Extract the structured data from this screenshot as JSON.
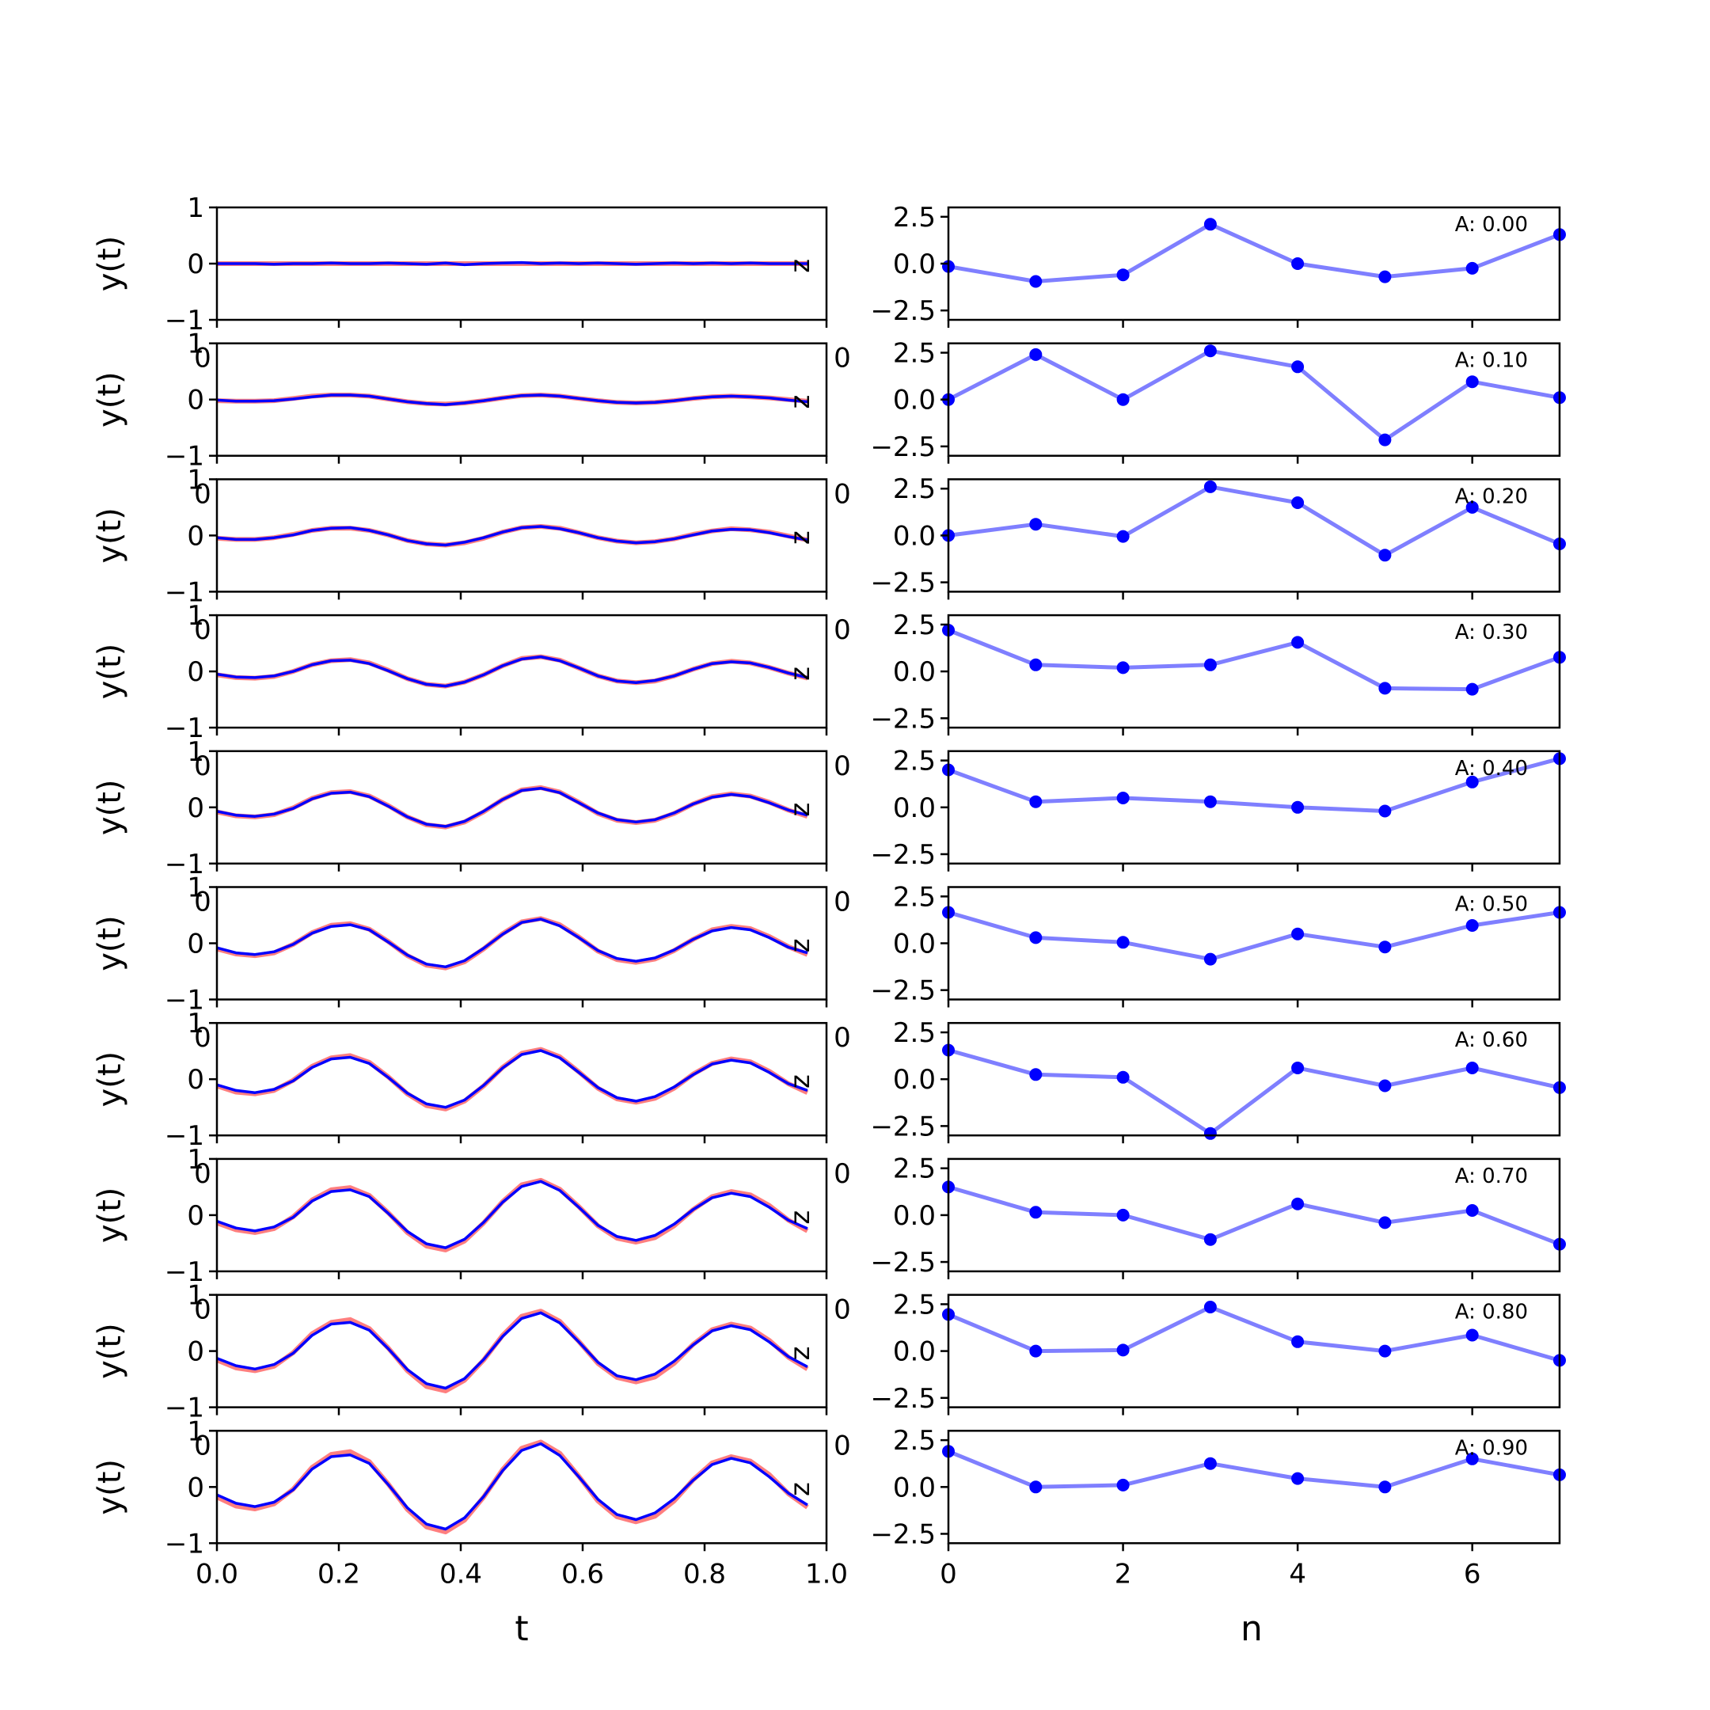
{
  "figure": {
    "layout": "10 rows x 2 columns",
    "left_xlabel": "t",
    "right_xlabel": "n"
  },
  "chart_data": [
    {
      "type": "line",
      "panel": "left-column",
      "series_colors": [
        "#ff0000",
        "#0000ff"
      ],
      "x": [
        0.0,
        0.03125,
        0.0625,
        0.09375,
        0.125,
        0.15625,
        0.1875,
        0.21875,
        0.25,
        0.28125,
        0.3125,
        0.34375,
        0.375,
        0.40625,
        0.4375,
        0.46875,
        0.5,
        0.53125,
        0.5625,
        0.59375,
        0.625,
        0.65625,
        0.6875,
        0.71875,
        0.75,
        0.78125,
        0.8125,
        0.84375,
        0.875,
        0.90625,
        0.9375,
        0.96875
      ],
      "xlim": [
        0.0,
        1.0
      ],
      "xticks": [
        "0.0",
        "0.2",
        "0.4",
        "0.6",
        "0.8",
        "1.0"
      ],
      "ylim": [
        -1,
        1
      ],
      "yticks": [
        "−1",
        "0",
        "1"
      ],
      "ylabel": "y(t)",
      "stray_labels": [
        "0",
        "0",
        "z"
      ],
      "rows": [
        {
          "red": [
            0.0,
            0.0,
            0.0,
            0.0,
            0.0,
            0.0,
            0.0,
            0.0,
            0.0,
            0.0,
            0.0,
            0.0,
            0.0,
            0.0,
            0.0,
            0.0,
            0.0,
            0.0,
            0.0,
            0.0,
            0.0,
            0.0,
            0.0,
            0.0,
            0.0,
            0.0,
            0.0,
            0.0,
            0.0,
            0.0,
            0.0,
            0.0
          ],
          "blue": [
            0.0,
            0.0,
            0.0,
            -0.01,
            0.0,
            0.0,
            0.01,
            0.0,
            0.0,
            0.01,
            0.0,
            -0.01,
            0.01,
            -0.02,
            0.0,
            0.01,
            0.02,
            0.0,
            0.01,
            0.0,
            0.01,
            0.0,
            -0.01,
            0.0,
            0.01,
            0.0,
            0.01,
            0.0,
            0.01,
            0.0,
            0.0,
            0.0
          ]
        },
        {
          "red": [
            -0.02,
            -0.03,
            -0.03,
            -0.02,
            0.02,
            0.06,
            0.08,
            0.08,
            0.06,
            0.01,
            -0.04,
            -0.07,
            -0.08,
            -0.06,
            -0.02,
            0.03,
            0.07,
            0.08,
            0.06,
            0.02,
            -0.02,
            -0.05,
            -0.06,
            -0.05,
            -0.02,
            0.02,
            0.05,
            0.06,
            0.05,
            0.03,
            0.0,
            -0.03
          ],
          "blue": [
            -0.01,
            -0.03,
            -0.03,
            -0.02,
            0.01,
            0.05,
            0.08,
            0.08,
            0.06,
            0.01,
            -0.04,
            -0.07,
            -0.09,
            -0.06,
            -0.02,
            0.03,
            0.07,
            0.08,
            0.06,
            0.02,
            -0.02,
            -0.05,
            -0.06,
            -0.05,
            -0.02,
            0.02,
            0.05,
            0.06,
            0.05,
            0.03,
            -0.01,
            -0.04
          ]
        },
        {
          "red": [
            -0.05,
            -0.07,
            -0.07,
            -0.04,
            0.02,
            0.09,
            0.13,
            0.13,
            0.09,
            0.01,
            -0.09,
            -0.15,
            -0.17,
            -0.13,
            -0.05,
            0.06,
            0.14,
            0.16,
            0.13,
            0.05,
            -0.04,
            -0.1,
            -0.13,
            -0.11,
            -0.06,
            0.02,
            0.08,
            0.12,
            0.1,
            0.06,
            -0.01,
            -0.08
          ],
          "blue": [
            -0.04,
            -0.07,
            -0.07,
            -0.04,
            0.01,
            0.09,
            0.13,
            0.14,
            0.09,
            0.01,
            -0.09,
            -0.15,
            -0.17,
            -0.12,
            -0.04,
            0.06,
            0.14,
            0.16,
            0.12,
            0.05,
            -0.04,
            -0.1,
            -0.13,
            -0.11,
            -0.06,
            0.01,
            0.08,
            0.11,
            0.1,
            0.05,
            -0.02,
            -0.08
          ]
        },
        {
          "red": [
            -0.06,
            -0.11,
            -0.12,
            -0.09,
            0.0,
            0.12,
            0.19,
            0.21,
            0.15,
            0.02,
            -0.13,
            -0.23,
            -0.26,
            -0.19,
            -0.06,
            0.1,
            0.23,
            0.26,
            0.2,
            0.06,
            -0.08,
            -0.17,
            -0.2,
            -0.17,
            -0.08,
            0.04,
            0.14,
            0.18,
            0.15,
            0.07,
            -0.03,
            -0.12
          ],
          "blue": [
            -0.05,
            -0.1,
            -0.11,
            -0.08,
            0.0,
            0.12,
            0.19,
            0.2,
            0.14,
            0.01,
            -0.13,
            -0.23,
            -0.26,
            -0.19,
            -0.06,
            0.1,
            0.22,
            0.26,
            0.19,
            0.06,
            -0.08,
            -0.17,
            -0.2,
            -0.16,
            -0.08,
            0.04,
            0.14,
            0.17,
            0.15,
            0.07,
            -0.03,
            -0.11
          ]
        },
        {
          "red": [
            -0.08,
            -0.15,
            -0.17,
            -0.13,
            -0.01,
            0.16,
            0.26,
            0.28,
            0.2,
            0.03,
            -0.17,
            -0.31,
            -0.35,
            -0.26,
            -0.08,
            0.14,
            0.31,
            0.35,
            0.27,
            0.09,
            -0.11,
            -0.23,
            -0.27,
            -0.23,
            -0.11,
            0.06,
            0.19,
            0.24,
            0.2,
            0.09,
            -0.05,
            -0.16
          ],
          "blue": [
            -0.07,
            -0.14,
            -0.16,
            -0.12,
            -0.02,
            0.15,
            0.25,
            0.27,
            0.19,
            0.02,
            -0.17,
            -0.3,
            -0.34,
            -0.25,
            -0.07,
            0.14,
            0.3,
            0.34,
            0.26,
            0.08,
            -0.1,
            -0.22,
            -0.26,
            -0.22,
            -0.1,
            0.06,
            0.18,
            0.23,
            0.19,
            0.08,
            -0.05,
            -0.14
          ]
        },
        {
          "red": [
            -0.1,
            -0.19,
            -0.22,
            -0.17,
            -0.02,
            0.19,
            0.32,
            0.35,
            0.25,
            0.03,
            -0.22,
            -0.39,
            -0.44,
            -0.33,
            -0.1,
            0.17,
            0.38,
            0.44,
            0.33,
            0.11,
            -0.14,
            -0.29,
            -0.34,
            -0.28,
            -0.13,
            0.07,
            0.24,
            0.3,
            0.26,
            0.12,
            -0.06,
            -0.2
          ],
          "blue": [
            -0.08,
            -0.17,
            -0.2,
            -0.15,
            -0.02,
            0.18,
            0.3,
            0.33,
            0.24,
            0.02,
            -0.21,
            -0.37,
            -0.42,
            -0.31,
            -0.09,
            0.16,
            0.37,
            0.43,
            0.31,
            0.1,
            -0.13,
            -0.27,
            -0.32,
            -0.26,
            -0.12,
            0.07,
            0.22,
            0.28,
            0.24,
            0.1,
            -0.07,
            -0.17
          ]
        },
        {
          "red": [
            -0.12,
            -0.23,
            -0.26,
            -0.2,
            -0.02,
            0.23,
            0.38,
            0.42,
            0.3,
            0.04,
            -0.26,
            -0.47,
            -0.53,
            -0.39,
            -0.12,
            0.21,
            0.46,
            0.53,
            0.4,
            0.13,
            -0.16,
            -0.35,
            -0.41,
            -0.34,
            -0.16,
            0.09,
            0.28,
            0.36,
            0.31,
            0.14,
            -0.08,
            -0.24
          ],
          "blue": [
            -0.1,
            -0.2,
            -0.24,
            -0.18,
            -0.03,
            0.21,
            0.36,
            0.39,
            0.28,
            0.03,
            -0.25,
            -0.44,
            -0.5,
            -0.37,
            -0.11,
            0.2,
            0.44,
            0.51,
            0.38,
            0.12,
            -0.15,
            -0.33,
            -0.39,
            -0.31,
            -0.14,
            0.08,
            0.27,
            0.34,
            0.29,
            0.12,
            -0.08,
            -0.2
          ]
        },
        {
          "red": [
            -0.14,
            -0.26,
            -0.31,
            -0.24,
            -0.03,
            0.27,
            0.45,
            0.49,
            0.35,
            0.04,
            -0.31,
            -0.55,
            -0.62,
            -0.46,
            -0.14,
            0.24,
            0.54,
            0.62,
            0.46,
            0.15,
            -0.19,
            -0.41,
            -0.48,
            -0.4,
            -0.19,
            0.1,
            0.33,
            0.42,
            0.36,
            0.17,
            -0.09,
            -0.28
          ],
          "blue": [
            -0.11,
            -0.23,
            -0.28,
            -0.21,
            -0.04,
            0.25,
            0.42,
            0.45,
            0.33,
            0.03,
            -0.29,
            -0.51,
            -0.58,
            -0.43,
            -0.13,
            0.23,
            0.51,
            0.6,
            0.44,
            0.14,
            -0.18,
            -0.38,
            -0.45,
            -0.36,
            -0.16,
            0.1,
            0.31,
            0.39,
            0.33,
            0.14,
            -0.09,
            -0.24
          ]
        },
        {
          "red": [
            -0.16,
            -0.3,
            -0.35,
            -0.27,
            -0.03,
            0.31,
            0.51,
            0.56,
            0.4,
            0.05,
            -0.35,
            -0.63,
            -0.71,
            -0.52,
            -0.16,
            0.28,
            0.62,
            0.71,
            0.53,
            0.17,
            -0.22,
            -0.47,
            -0.55,
            -0.46,
            -0.22,
            0.12,
            0.38,
            0.48,
            0.41,
            0.19,
            -0.11,
            -0.32
          ],
          "blue": [
            -0.13,
            -0.26,
            -0.32,
            -0.24,
            -0.04,
            0.28,
            0.48,
            0.51,
            0.37,
            0.04,
            -0.33,
            -0.58,
            -0.66,
            -0.49,
            -0.15,
            0.26,
            0.58,
            0.68,
            0.5,
            0.16,
            -0.2,
            -0.44,
            -0.51,
            -0.41,
            -0.18,
            0.11,
            0.36,
            0.45,
            0.38,
            0.16,
            -0.1,
            -0.28
          ]
        },
        {
          "red": [
            -0.18,
            -0.34,
            -0.39,
            -0.3,
            -0.04,
            0.35,
            0.58,
            0.63,
            0.45,
            0.05,
            -0.4,
            -0.71,
            -0.8,
            -0.59,
            -0.18,
            0.31,
            0.69,
            0.8,
            0.6,
            0.19,
            -0.25,
            -0.53,
            -0.62,
            -0.52,
            -0.25,
            0.13,
            0.43,
            0.54,
            0.46,
            0.22,
            -0.12,
            -0.36
          ],
          "blue": [
            -0.14,
            -0.29,
            -0.35,
            -0.27,
            -0.05,
            0.32,
            0.54,
            0.57,
            0.42,
            0.04,
            -0.37,
            -0.66,
            -0.75,
            -0.55,
            -0.17,
            0.29,
            0.65,
            0.77,
            0.56,
            0.18,
            -0.22,
            -0.49,
            -0.58,
            -0.46,
            -0.21,
            0.12,
            0.4,
            0.51,
            0.43,
            0.18,
            -0.11,
            -0.32
          ]
        }
      ]
    },
    {
      "type": "line",
      "panel": "right-column",
      "marker": "circle",
      "line_color": "#0000ff",
      "line_alpha": 0.5,
      "x": [
        0,
        1,
        2,
        3,
        4,
        5,
        6,
        7
      ],
      "xlim": [
        0,
        7
      ],
      "xticks": [
        "0",
        "2",
        "4",
        "6"
      ],
      "ylim": [
        -3,
        3
      ],
      "yticks": [
        "2.5",
        "0.0",
        "−2.5"
      ],
      "stray_labels": [
        "0",
        "0"
      ],
      "rows": [
        {
          "annotation": "A: 0.00",
          "values": [
            -0.15,
            -0.95,
            -0.6,
            2.1,
            0.0,
            -0.7,
            -0.25,
            1.55
          ]
        },
        {
          "annotation": "A: 0.10",
          "values": [
            0.0,
            2.4,
            0.0,
            2.6,
            1.75,
            -2.15,
            0.95,
            0.1
          ]
        },
        {
          "annotation": "A: 0.20",
          "values": [
            0.0,
            0.6,
            -0.05,
            2.6,
            1.75,
            -1.05,
            1.5,
            -0.45
          ]
        },
        {
          "annotation": "A: 0.30",
          "values": [
            2.2,
            0.35,
            0.2,
            0.35,
            1.55,
            -0.9,
            -0.95,
            0.75
          ]
        },
        {
          "annotation": "A: 0.40",
          "values": [
            2.0,
            0.3,
            0.5,
            0.3,
            0.0,
            -0.2,
            1.35,
            2.6
          ]
        },
        {
          "annotation": "A: 0.50",
          "values": [
            1.65,
            0.3,
            0.05,
            -0.85,
            0.5,
            -0.2,
            0.95,
            1.65
          ]
        },
        {
          "annotation": "A: 0.60",
          "values": [
            1.55,
            0.25,
            0.1,
            -2.9,
            0.6,
            -0.35,
            0.6,
            -0.45
          ]
        },
        {
          "annotation": "A: 0.70",
          "values": [
            1.5,
            0.15,
            0.0,
            -1.3,
            0.6,
            -0.4,
            0.25,
            -1.55
          ]
        },
        {
          "annotation": "A: 0.80",
          "values": [
            1.95,
            0.0,
            0.05,
            2.35,
            0.5,
            0.0,
            0.85,
            -0.5
          ]
        },
        {
          "annotation": "A: 0.90",
          "values": [
            1.9,
            0.0,
            0.1,
            1.25,
            0.45,
            0.0,
            1.5,
            0.65
          ]
        }
      ]
    }
  ]
}
